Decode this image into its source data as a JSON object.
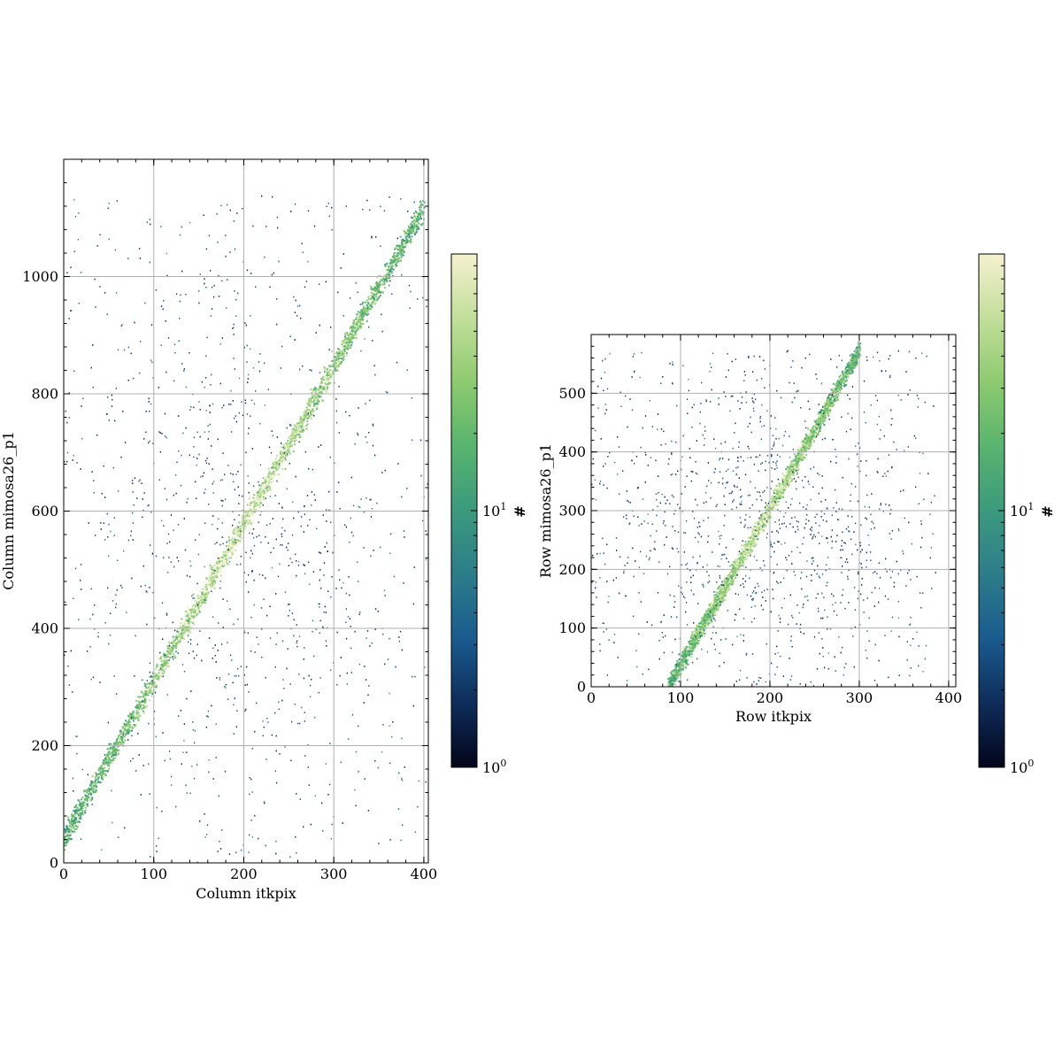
{
  "chart_data": [
    {
      "type": "heatmap",
      "xlabel": "Column itkpix",
      "ylabel": "Column mimosa26_p1",
      "xlim": [
        0,
        405
      ],
      "ylim": [
        0,
        1200
      ],
      "xticks": [
        "0",
        "100",
        "200",
        "300",
        "400"
      ],
      "yticks": [
        "0",
        "200",
        "400",
        "600",
        "800",
        "1000"
      ],
      "grid": true,
      "correlation": {
        "x_start": 0,
        "y_start": 45,
        "x_end": 400,
        "y_end": 1120,
        "band_width": 10
      },
      "background_noise": {
        "x_range": [
          0,
          405
        ],
        "y_range": [
          0,
          1140
        ],
        "center_x": 200,
        "center_y": 580
      },
      "colorbar": {
        "label": "#",
        "scale": "log",
        "min": 1,
        "max": 100,
        "tick_base": "10",
        "tick_exponents": [
          "0",
          "1"
        ]
      }
    },
    {
      "type": "heatmap",
      "xlabel": "Row itkpix",
      "ylabel": "Row mimosa26_p1",
      "xlim": [
        0,
        408
      ],
      "ylim": [
        0,
        600
      ],
      "xticks": [
        "0",
        "100",
        "200",
        "300",
        "400"
      ],
      "yticks": [
        "0",
        "100",
        "200",
        "300",
        "400",
        "500"
      ],
      "grid": true,
      "correlation": {
        "x_start": 85,
        "y_start": 0,
        "x_end": 300,
        "y_end": 575,
        "band_width": 8
      },
      "background_noise": {
        "x_range": [
          0,
          385
        ],
        "y_range": [
          0,
          575
        ],
        "center_x": 200,
        "center_y": 290
      },
      "colorbar": {
        "label": "#",
        "scale": "log",
        "min": 1,
        "max": 100,
        "tick_base": "10",
        "tick_exponents": [
          "0",
          "1"
        ]
      }
    }
  ],
  "colors": {
    "grid": "#b0b0b0",
    "cmap": [
      "#03051a",
      "#0e2d5a",
      "#1a5b8f",
      "#2c7d8a",
      "#3b9a7d",
      "#58b46e",
      "#8dca6f",
      "#c2df9a",
      "#f5f1cf"
    ]
  }
}
